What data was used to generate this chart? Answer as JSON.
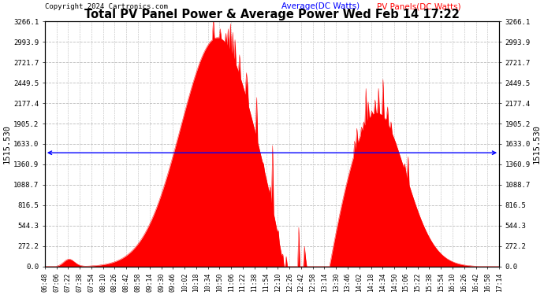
{
  "title": "Total PV Panel Power & Average Power Wed Feb 14 17:22",
  "copyright": "Copyright 2024 Cartronics.com",
  "legend_avg": "Average(DC Watts)",
  "legend_pv": "PV Panels(DC Watts)",
  "avg_value": 1515.53,
  "y_max": 3266.1,
  "y_min": 0.0,
  "y_ticks": [
    0.0,
    272.2,
    544.3,
    816.5,
    1088.7,
    1360.9,
    1633.0,
    1905.2,
    2177.4,
    2449.5,
    2721.7,
    2993.9,
    3266.1
  ],
  "left_label": "1515.530",
  "right_label": "1515.530",
  "bg_color": "#ffffff",
  "fill_color": "#ff0000",
  "avg_line_color": "#0000ff",
  "title_color": "#000000",
  "copyright_color": "#000000",
  "legend_avg_color": "#0000ff",
  "legend_pv_color": "#ff0000",
  "grid_color": "#bbbbbb",
  "x_tick_labels": [
    "06:48",
    "07:06",
    "07:22",
    "07:38",
    "07:54",
    "08:10",
    "08:26",
    "08:42",
    "08:58",
    "09:14",
    "09:30",
    "09:46",
    "10:02",
    "10:18",
    "10:34",
    "10:50",
    "11:06",
    "11:22",
    "11:38",
    "11:54",
    "12:10",
    "12:26",
    "12:42",
    "12:58",
    "13:14",
    "13:30",
    "13:46",
    "14:02",
    "14:18",
    "14:34",
    "14:50",
    "15:06",
    "15:22",
    "15:38",
    "15:54",
    "16:10",
    "16:26",
    "16:42",
    "16:58",
    "17:14"
  ],
  "num_points": 400
}
